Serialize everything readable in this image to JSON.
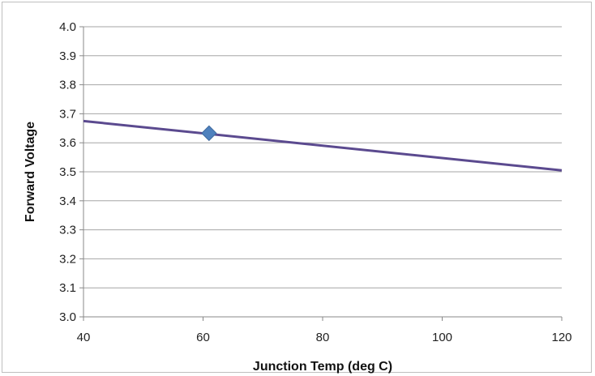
{
  "chart_data": {
    "type": "line",
    "title": "",
    "xlabel": "Junction Temp (deg C)",
    "ylabel": "Forward Voltage",
    "xlim": [
      40,
      120
    ],
    "ylim": [
      3.0,
      4.0
    ],
    "x_ticks": [
      "40",
      "60",
      "80",
      "100",
      "120"
    ],
    "y_ticks": [
      "3.0",
      "3.1",
      "3.2",
      "3.3",
      "3.4",
      "3.5",
      "3.6",
      "3.7",
      "3.8",
      "3.9",
      "4.0"
    ],
    "grid": "horizontal",
    "legend": "none",
    "series": [
      {
        "kind": "line",
        "color": "#5b4a8f",
        "points": [
          {
            "x": 40,
            "y": 3.675
          },
          {
            "x": 120,
            "y": 3.505
          }
        ]
      },
      {
        "kind": "scatter",
        "marker": "diamond",
        "color": "#4f81bd",
        "points": [
          {
            "x": 61,
            "y": 3.633
          }
        ]
      }
    ]
  }
}
